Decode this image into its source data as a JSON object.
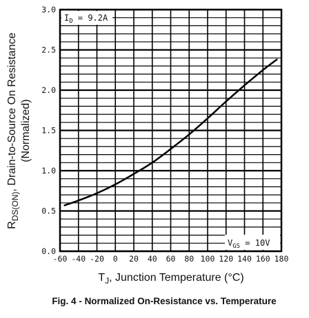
{
  "chart_data": {
    "type": "line",
    "x_ticks": [
      "-60",
      "-40",
      "-20",
      "0",
      "20",
      "40",
      "60",
      "80",
      "100",
      "120",
      "140",
      "160",
      "180"
    ],
    "y_ticks": [
      "0.0",
      "0.5",
      "1.0",
      "1.5",
      "2.0",
      "2.5",
      "3.0"
    ],
    "xlim": [
      -60,
      180
    ],
    "ylim": [
      0,
      3.0
    ],
    "grid": true,
    "y_axis_title": {
      "line1_main": "R",
      "line1_sub": "DS(ON)",
      "line1_rest": ", Drain-to-Source On Resistance",
      "line2": "(Normalized)"
    },
    "x_axis_title": {
      "main": "T",
      "sub": "J",
      "rest": ", Junction Temperature (°C)"
    },
    "annotations": {
      "id": {
        "main": "I",
        "sub": "D",
        "rest": " = 9.2A"
      },
      "vgs": {
        "main": "V",
        "sub": "GS",
        "rest": " = 10V"
      }
    },
    "series": [
      {
        "x": [
          -55,
          -40,
          -20,
          0,
          20,
          40,
          60,
          80,
          100,
          120,
          140,
          160,
          175
        ],
        "values": [
          0.57,
          0.63,
          0.72,
          0.83,
          0.96,
          1.1,
          1.27,
          1.45,
          1.65,
          1.86,
          2.06,
          2.25,
          2.38
        ]
      }
    ]
  },
  "caption": "Fig. 4 - Normalized On-Resistance vs. Temperature"
}
